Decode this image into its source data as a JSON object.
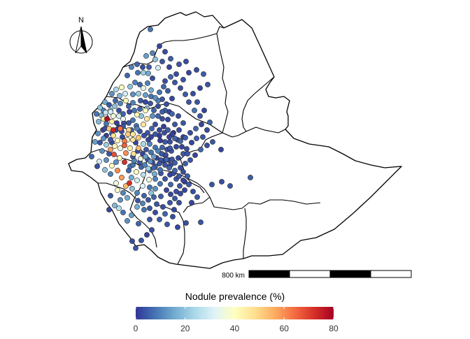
{
  "north_arrow": {
    "label": "N"
  },
  "scale_bar": {
    "label": "800 km"
  },
  "legend": {
    "title": "Nodule prevalence (%)",
    "ticks": [
      "0",
      "20",
      "40",
      "60",
      "80"
    ],
    "tick_values": [
      0,
      20,
      40,
      60,
      80
    ],
    "range": [
      0,
      80
    ],
    "colors": [
      "#313695",
      "#4575b4",
      "#74add1",
      "#abd9e9",
      "#e0f3f8",
      "#ffffbf",
      "#fee090",
      "#fdae61",
      "#f46d43",
      "#d73027",
      "#a50026"
    ]
  },
  "colors": {
    "boundary": "#000000",
    "point_stroke": "#222222",
    "background": "#ffffff"
  },
  "surveys": [
    [
      215,
      42,
      8
    ],
    [
      218,
      76,
      10
    ],
    [
      209,
      80,
      14
    ],
    [
      222,
      85,
      20
    ],
    [
      213,
      96,
      5
    ],
    [
      226,
      97,
      30
    ],
    [
      205,
      104,
      22
    ],
    [
      197,
      104,
      8
    ],
    [
      182,
      108,
      6
    ],
    [
      218,
      112,
      3
    ],
    [
      211,
      119,
      10
    ],
    [
      216,
      129,
      16
    ],
    [
      205,
      126,
      34
    ],
    [
      198,
      134,
      22
    ],
    [
      190,
      135,
      12
    ],
    [
      179,
      134,
      30
    ],
    [
      171,
      137,
      18
    ],
    [
      165,
      144,
      6
    ],
    [
      180,
      144,
      40
    ],
    [
      190,
      147,
      10
    ],
    [
      201,
      144,
      4
    ],
    [
      208,
      146,
      2
    ],
    [
      158,
      158,
      20
    ],
    [
      151,
      161,
      28
    ],
    [
      145,
      165,
      18
    ],
    [
      162,
      166,
      36
    ],
    [
      170,
      158,
      3
    ],
    [
      176,
      163,
      6
    ],
    [
      185,
      160,
      2
    ],
    [
      196,
      164,
      42
    ],
    [
      202,
      166,
      20
    ],
    [
      160,
      174,
      44
    ],
    [
      152,
      177,
      8
    ],
    [
      147,
      186,
      3
    ],
    [
      140,
      191,
      12
    ],
    [
      152,
      194,
      1
    ],
    [
      160,
      191,
      5
    ],
    [
      166,
      186,
      2
    ],
    [
      170,
      182,
      1
    ],
    [
      177,
      176,
      3
    ],
    [
      184,
      176,
      4
    ],
    [
      190,
      172,
      8
    ],
    [
      196,
      184,
      10
    ],
    [
      205,
      178,
      46
    ],
    [
      211,
      190,
      4
    ],
    [
      217,
      184,
      6
    ],
    [
      222,
      178,
      3
    ],
    [
      228,
      186,
      2
    ],
    [
      234,
      181,
      1
    ],
    [
      240,
      186,
      5
    ],
    [
      246,
      192,
      2
    ],
    [
      243,
      203,
      3
    ],
    [
      236,
      203,
      4
    ],
    [
      229,
      201,
      1
    ],
    [
      222,
      211,
      8
    ],
    [
      214,
      206,
      10
    ],
    [
      205,
      206,
      24
    ],
    [
      198,
      212,
      54
    ],
    [
      190,
      200,
      48
    ],
    [
      183,
      192,
      52
    ],
    [
      178,
      202,
      62
    ],
    [
      172,
      212,
      36
    ],
    [
      164,
      209,
      42
    ],
    [
      158,
      214,
      58
    ],
    [
      163,
      221,
      68
    ],
    [
      171,
      226,
      40
    ],
    [
      178,
      232,
      72
    ],
    [
      186,
      238,
      8
    ],
    [
      192,
      230,
      10
    ],
    [
      201,
      227,
      36
    ],
    [
      208,
      224,
      14
    ],
    [
      215,
      231,
      12
    ],
    [
      222,
      238,
      6
    ],
    [
      230,
      229,
      4
    ],
    [
      237,
      222,
      3
    ],
    [
      245,
      216,
      4
    ],
    [
      252,
      210,
      2
    ],
    [
      258,
      202,
      6
    ],
    [
      265,
      197,
      5
    ],
    [
      272,
      190,
      3
    ],
    [
      280,
      184,
      6
    ],
    [
      288,
      178,
      2
    ],
    [
      286,
      166,
      4
    ],
    [
      278,
      158,
      8
    ],
    [
      270,
      146,
      4
    ],
    [
      265,
      135,
      5
    ],
    [
      258,
      126,
      3
    ],
    [
      250,
      118,
      4
    ],
    [
      244,
      110,
      6
    ],
    [
      236,
      116,
      3
    ],
    [
      240,
      130,
      5
    ],
    [
      246,
      141,
      2
    ],
    [
      232,
      142,
      4
    ],
    [
      226,
      152,
      3
    ],
    [
      236,
      158,
      5
    ],
    [
      246,
      163,
      6
    ],
    [
      255,
      166,
      3
    ],
    [
      262,
      176,
      4
    ],
    [
      136,
      203,
      14
    ],
    [
      131,
      224,
      6
    ],
    [
      142,
      231,
      30
    ],
    [
      152,
      229,
      12
    ],
    [
      160,
      237,
      40
    ],
    [
      168,
      244,
      60
    ],
    [
      174,
      254,
      58
    ],
    [
      180,
      266,
      54
    ],
    [
      176,
      276,
      10
    ],
    [
      182,
      283,
      16
    ],
    [
      172,
      286,
      12
    ],
    [
      164,
      294,
      18
    ],
    [
      176,
      304,
      8
    ],
    [
      188,
      308,
      14
    ],
    [
      196,
      296,
      16
    ],
    [
      204,
      291,
      10
    ],
    [
      212,
      286,
      4
    ],
    [
      216,
      276,
      20
    ],
    [
      222,
      270,
      12
    ],
    [
      229,
      263,
      8
    ],
    [
      236,
      256,
      4
    ],
    [
      243,
      250,
      2
    ],
    [
      250,
      244,
      6
    ],
    [
      258,
      240,
      3
    ],
    [
      265,
      234,
      5
    ],
    [
      272,
      229,
      4
    ],
    [
      279,
      222,
      2
    ],
    [
      287,
      214,
      6
    ],
    [
      296,
      208,
      3
    ],
    [
      304,
      203,
      4
    ],
    [
      316,
      214,
      2
    ],
    [
      303,
      264,
      4
    ],
    [
      317,
      260,
      3
    ],
    [
      329,
      266,
      4
    ],
    [
      358,
      254,
      5
    ],
    [
      274,
      290,
      2
    ],
    [
      287,
      318,
      4
    ],
    [
      266,
      319,
      3
    ],
    [
      254,
      325,
      2
    ],
    [
      239,
      321,
      4
    ],
    [
      228,
      314,
      5
    ],
    [
      217,
      329,
      3
    ],
    [
      210,
      336,
      2
    ],
    [
      202,
      344,
      4
    ],
    [
      189,
      345,
      3
    ],
    [
      194,
      355,
      4
    ],
    [
      252,
      274,
      3
    ],
    [
      257,
      266,
      4
    ],
    [
      264,
      260,
      2
    ],
    [
      268,
      252,
      5
    ],
    [
      262,
      246,
      3
    ],
    [
      252,
      256,
      4
    ],
    [
      244,
      264,
      6
    ],
    [
      238,
      272,
      2
    ],
    [
      230,
      281,
      5
    ],
    [
      224,
      292,
      4
    ],
    [
      233,
      296,
      3
    ],
    [
      243,
      290,
      4
    ],
    [
      249,
      300,
      2
    ],
    [
      256,
      290,
      3
    ],
    [
      205,
      250,
      26
    ],
    [
      196,
      258,
      30
    ],
    [
      204,
      266,
      32
    ],
    [
      213,
      257,
      36
    ],
    [
      221,
      249,
      16
    ],
    [
      229,
      243,
      8
    ],
    [
      236,
      236,
      4
    ],
    [
      241,
      229,
      2
    ],
    [
      220,
      224,
      14
    ],
    [
      226,
      216,
      10
    ],
    [
      232,
      211,
      6
    ],
    [
      239,
      214,
      3
    ],
    [
      246,
      228,
      4
    ],
    [
      250,
      233,
      5
    ],
    [
      255,
      226,
      2
    ],
    [
      262,
      220,
      4
    ],
    [
      267,
      213,
      3
    ],
    [
      274,
      204,
      2
    ],
    [
      281,
      198,
      5
    ],
    [
      290,
      196,
      4
    ],
    [
      296,
      186,
      3
    ],
    [
      300,
      175,
      6
    ],
    [
      292,
      158,
      2
    ],
    [
      282,
      146,
      4
    ],
    [
      276,
      134,
      3
    ],
    [
      286,
      126,
      2
    ],
    [
      297,
      121,
      4
    ],
    [
      291,
      106,
      5
    ],
    [
      281,
      100,
      3
    ],
    [
      270,
      104,
      2
    ],
    [
      262,
      114,
      4
    ],
    [
      252,
      106,
      3
    ],
    [
      242,
      96,
      2
    ],
    [
      232,
      88,
      4
    ],
    [
      236,
      74,
      3
    ],
    [
      228,
      66,
      2
    ],
    [
      244,
      84,
      5
    ],
    [
      256,
      92,
      4
    ],
    [
      266,
      88,
      3
    ],
    [
      196,
      92,
      6
    ],
    [
      188,
      96,
      10
    ],
    [
      204,
      96,
      3
    ],
    [
      212,
      105,
      16
    ],
    [
      193,
      118,
      10
    ],
    [
      200,
      121,
      6
    ],
    [
      186,
      124,
      20
    ],
    [
      174,
      125,
      40
    ],
    [
      166,
      128,
      24
    ],
    [
      160,
      134,
      12
    ],
    [
      150,
      146,
      16
    ],
    [
      143,
      154,
      20
    ],
    [
      138,
      163,
      8
    ],
    [
      148,
      170,
      46
    ],
    [
      156,
      184,
      52
    ],
    [
      143,
      204,
      4
    ],
    [
      152,
      207,
      22
    ],
    [
      146,
      216,
      12
    ],
    [
      139,
      238,
      3
    ],
    [
      150,
      243,
      20
    ],
    [
      158,
      249,
      10
    ],
    [
      166,
      262,
      36
    ],
    [
      168,
      272,
      38
    ],
    [
      158,
      280,
      4
    ],
    [
      170,
      298,
      26
    ],
    [
      156,
      300,
      2
    ],
    [
      182,
      316,
      12
    ],
    [
      198,
      320,
      6
    ],
    [
      214,
      314,
      4
    ],
    [
      222,
      304,
      3
    ],
    [
      196,
      276,
      10
    ],
    [
      189,
      270,
      20
    ],
    [
      197,
      287,
      4
    ],
    [
      206,
      280,
      6
    ],
    [
      188,
      254,
      16
    ],
    [
      195,
      246,
      40
    ],
    [
      212,
      241,
      22
    ],
    [
      202,
      239,
      6
    ],
    [
      216,
      218,
      8
    ],
    [
      209,
      214,
      4
    ],
    [
      191,
      220,
      48
    ],
    [
      186,
      212,
      44
    ],
    [
      180,
      219,
      60
    ],
    [
      168,
      201,
      40
    ],
    [
      175,
      196,
      2
    ],
    [
      188,
      186,
      6
    ],
    [
      195,
      180,
      8
    ],
    [
      210,
      170,
      46
    ],
    [
      218,
      166,
      12
    ],
    [
      226,
      166,
      6
    ],
    [
      232,
      170,
      3
    ],
    [
      240,
      171,
      2
    ],
    [
      250,
      178,
      4
    ],
    [
      256,
      186,
      3
    ],
    [
      262,
      196,
      2
    ],
    [
      250,
      198,
      6
    ],
    [
      243,
      212,
      4
    ],
    [
      236,
      222,
      2
    ],
    [
      230,
      248,
      4
    ],
    [
      222,
      256,
      10
    ],
    [
      214,
      268,
      8
    ],
    [
      220,
      282,
      6
    ],
    [
      244,
      278,
      2
    ],
    [
      250,
      284,
      4
    ],
    [
      258,
      277,
      3
    ],
    [
      264,
      272,
      2
    ],
    [
      206,
      300,
      8
    ],
    [
      214,
      298,
      4
    ],
    [
      236,
      306,
      6
    ],
    [
      247,
      310,
      3
    ],
    [
      150,
      184,
      3
    ],
    [
      158,
      200,
      4
    ],
    [
      162,
      194,
      48
    ],
    [
      174,
      188,
      3
    ],
    [
      182,
      200,
      38
    ],
    [
      176,
      181,
      4
    ],
    [
      167,
      176,
      1
    ],
    [
      184,
      186,
      50
    ],
    [
      190,
      192,
      46
    ],
    [
      198,
      197,
      52
    ],
    [
      158,
      160,
      30
    ],
    [
      164,
      152,
      20
    ],
    [
      172,
      148,
      10
    ],
    [
      184,
      152,
      6
    ],
    [
      176,
      170,
      34
    ],
    [
      170,
      166,
      30
    ],
    [
      192,
      158,
      8
    ],
    [
      200,
      156,
      6
    ],
    [
      208,
      158,
      40
    ],
    [
      215,
      148,
      4
    ],
    [
      222,
      140,
      12
    ],
    [
      228,
      132,
      8
    ],
    [
      234,
      124,
      6
    ],
    [
      156,
      150,
      4
    ],
    [
      148,
      158,
      10
    ],
    [
      141,
      174,
      18
    ],
    [
      148,
      198,
      12
    ],
    [
      156,
      220,
      4
    ],
    [
      166,
      232,
      12
    ],
    [
      184,
      244,
      6
    ],
    [
      190,
      236,
      8
    ],
    [
      200,
      232,
      4
    ],
    [
      207,
      236,
      10
    ],
    [
      214,
      244,
      8
    ],
    [
      220,
      240,
      6
    ],
    [
      228,
      234,
      4
    ],
    [
      234,
      230,
      2
    ],
    [
      242,
      240,
      6
    ],
    [
      248,
      248,
      3
    ],
    [
      256,
      252,
      4
    ],
    [
      262,
      258,
      2
    ],
    [
      270,
      264,
      5
    ],
    [
      276,
      274,
      3
    ],
    [
      282,
      282,
      4
    ],
    [
      216,
      196,
      2
    ],
    [
      222,
      192,
      4
    ],
    [
      228,
      194,
      1
    ],
    [
      235,
      190,
      3
    ],
    [
      242,
      196,
      2
    ],
    [
      248,
      190,
      1
    ],
    [
      254,
      200,
      3
    ],
    [
      260,
      210,
      2
    ],
    [
      268,
      220,
      4
    ],
    [
      242,
      160,
      2
    ],
    [
      238,
      149,
      3
    ],
    [
      232,
      160,
      5
    ],
    [
      210,
      155,
      18
    ],
    [
      220,
      158,
      6
    ],
    [
      226,
      144,
      10
    ],
    [
      216,
      138,
      8
    ],
    [
      208,
      136,
      14
    ],
    [
      162,
      186,
      74
    ],
    [
      153,
      170,
      78
    ],
    [
      172,
      184,
      64
    ],
    [
      178,
      208,
      66
    ],
    [
      185,
      262,
      72
    ],
    [
      190,
      224,
      4
    ],
    [
      197,
      216,
      3
    ],
    [
      204,
      220,
      2
    ],
    [
      211,
      228,
      5
    ],
    [
      218,
      232,
      3
    ],
    [
      224,
      226,
      2
    ],
    [
      231,
      220,
      4
    ],
    [
      238,
      228,
      6
    ],
    [
      244,
      236,
      3
    ],
    [
      212,
      200,
      2
    ],
    [
      206,
      194,
      3
    ],
    [
      200,
      188,
      4
    ],
    [
      194,
      204,
      2
    ],
    [
      160,
      204,
      3
    ]
  ]
}
